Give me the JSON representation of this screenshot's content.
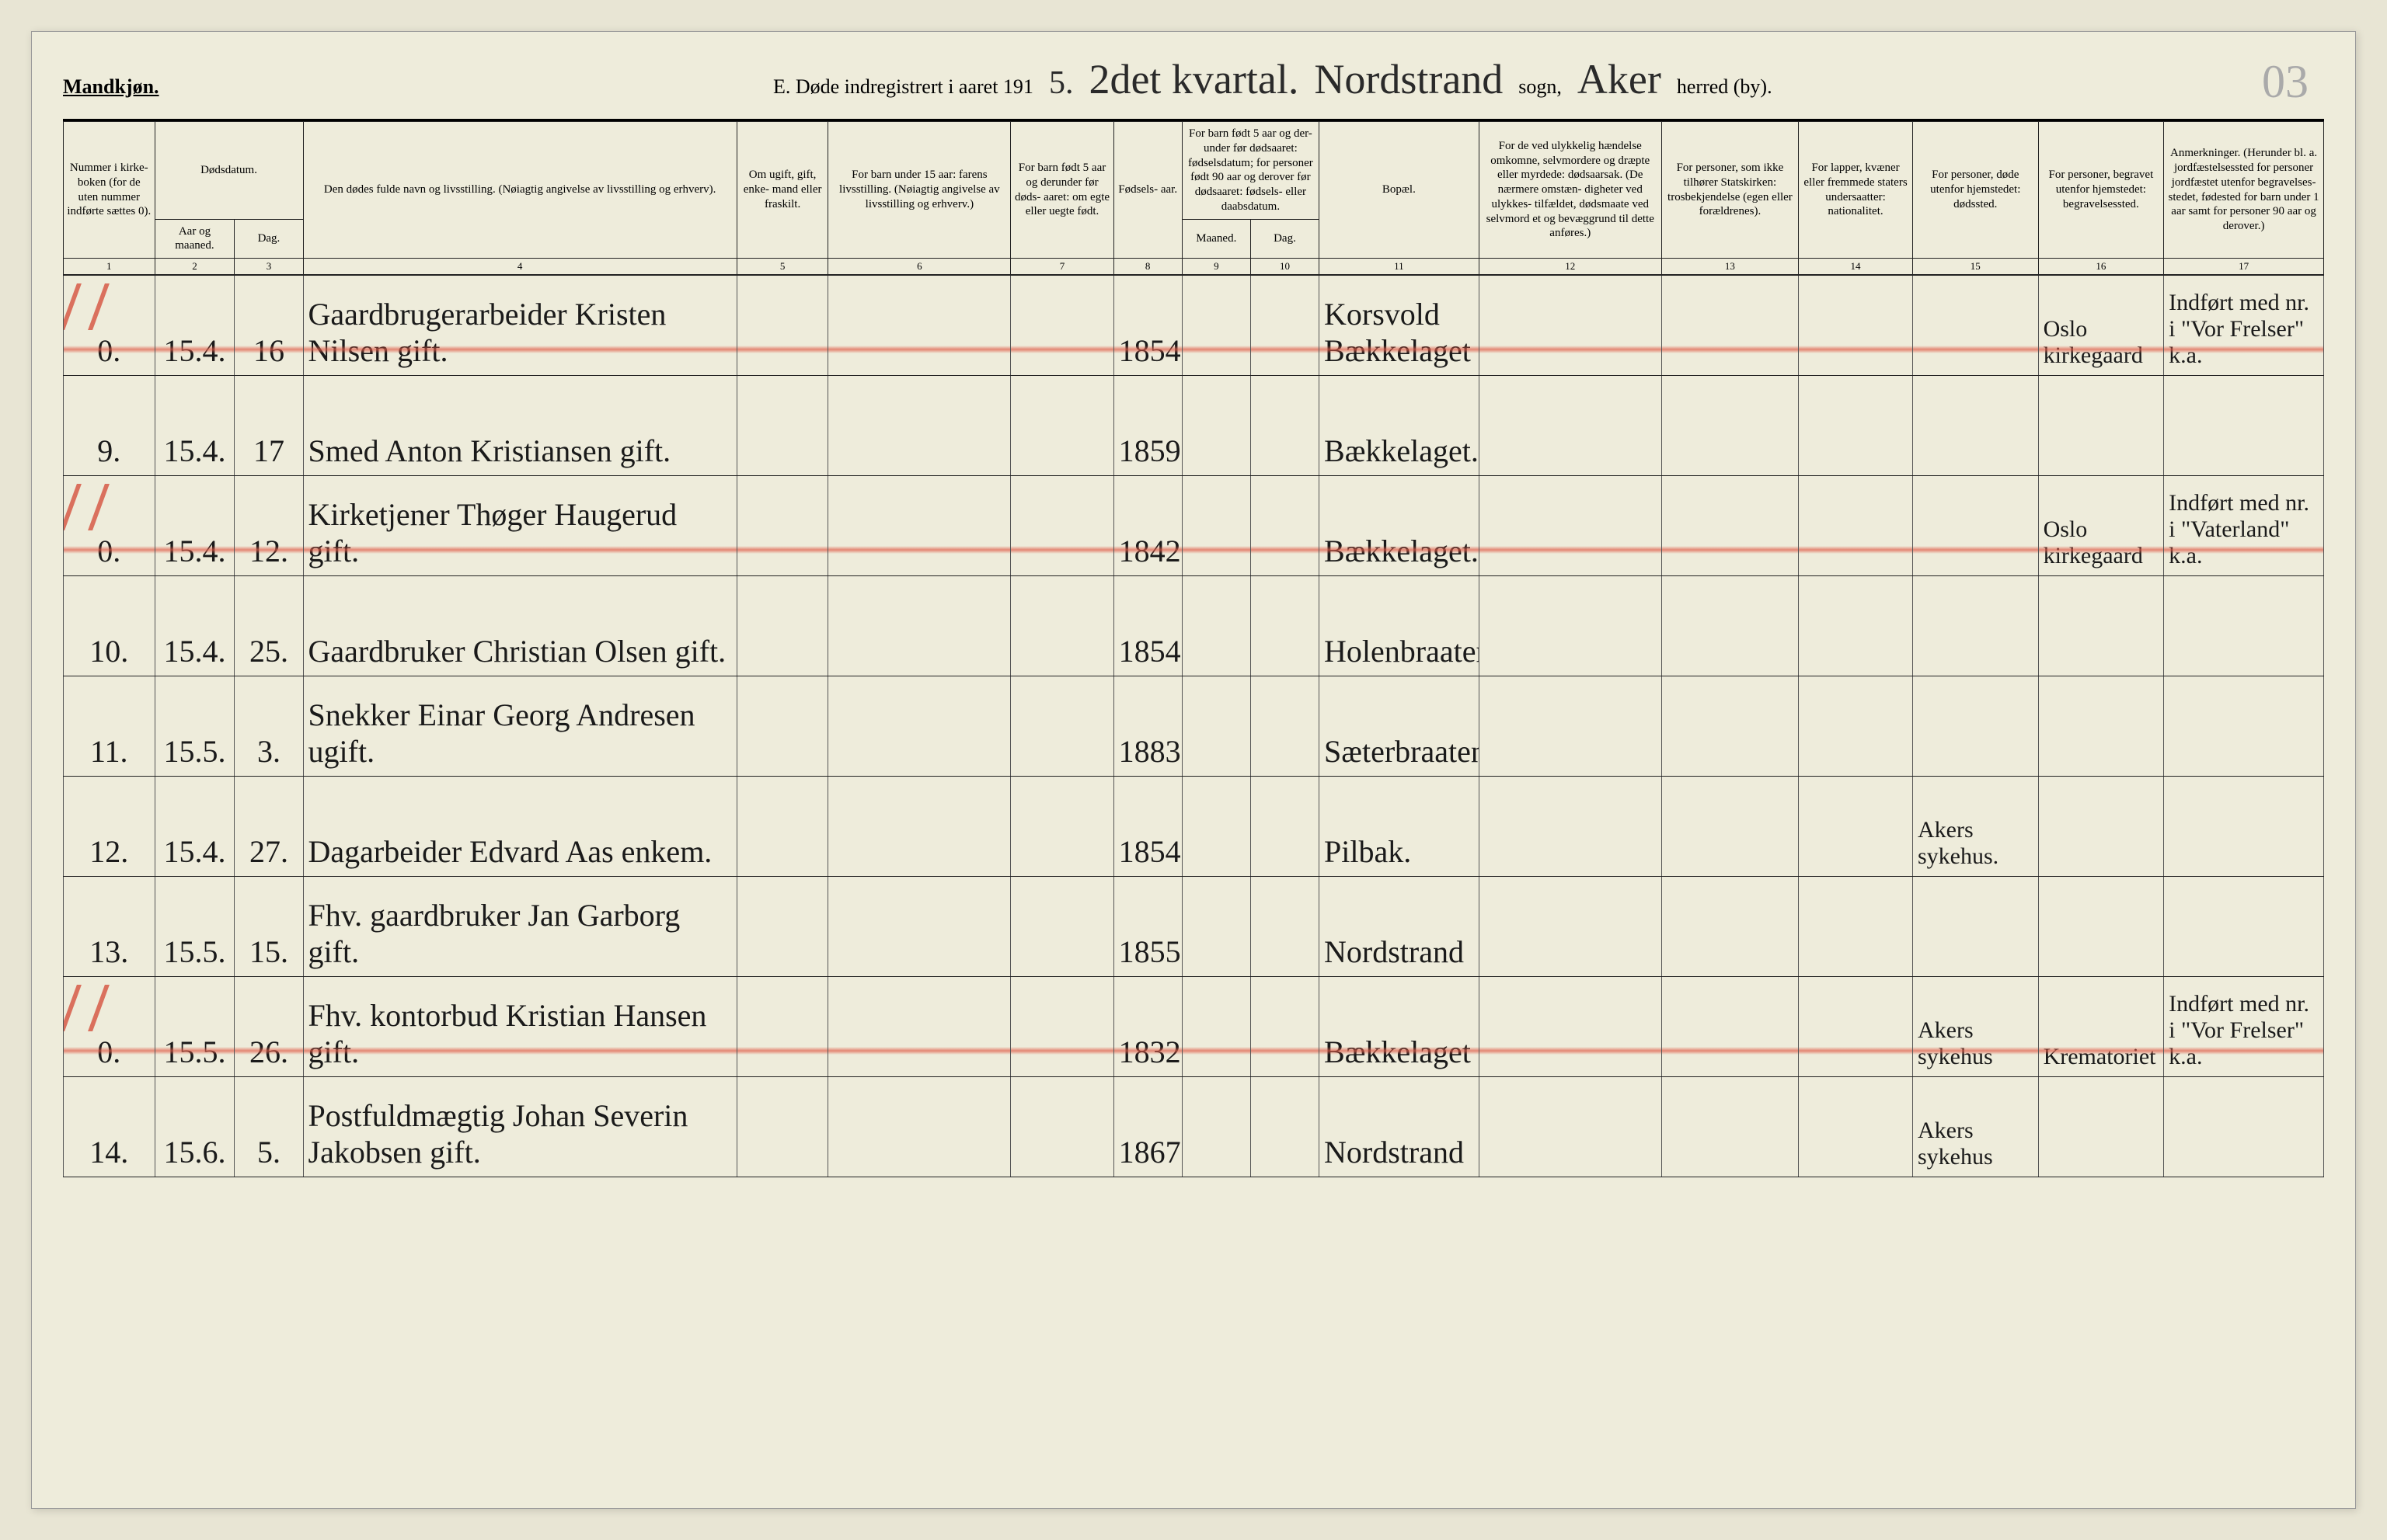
{
  "header": {
    "gender_label": "Mandkjøn.",
    "title_prefix": "E.  Døde indregistrert i aaret 191",
    "year_digit": "5.",
    "quarter_hand": "2det kvartal.",
    "parish_hand": "Nordstrand",
    "sogn_label": "sogn,",
    "district_hand": "Aker",
    "herred_label": "herred (by).",
    "page_marker": "03"
  },
  "columns": {
    "c1": "Nummer i kirke- boken (for de uten nummer indførte sættes 0).",
    "c2_top": "Dødsdatum.",
    "c2": "Aar og maaned.",
    "c3": "Dag.",
    "c4": "Den dødes fulde navn og livsstilling. (Nøiagtig angivelse av livsstilling og erhverv).",
    "c5": "Om ugift, gift, enke- mand eller fraskilt.",
    "c6": "For barn under 15 aar: farens livsstilling. (Nøiagtig angivelse av livsstilling og erhverv.)",
    "c7": "For barn født 5 aar og derunder før døds- aaret: om egte eller uegte født.",
    "c8": "Fødsels- aar.",
    "c9_top": "For barn født 5 aar og der- under før dødsaaret: fødselsdatum; for personer født 90 aar og derover før dødsaaret: fødsels- eller daabsdatum.",
    "c9": "Maaned.",
    "c10": "Dag.",
    "c11": "Bopæl.",
    "c12": "For de ved ulykkelig hændelse omkomne, selvmordere og dræpte eller myrdede: dødsaarsak. (De nærmere omstæn- digheter ved ulykkes- tilfældet, dødsmaate ved selvmord et og bevæggrund til dette anføres.)",
    "c13": "For personer, som ikke tilhører Statskirken: trosbekjendelse (egen eller forældrenes).",
    "c14": "For lapper, kvæner eller fremmede staters undersaatter: nationalitet.",
    "c15": "For personer, døde utenfor hjemstedet: dødssted.",
    "c16": "For personer, begravet utenfor hjemstedet: begravelsessted.",
    "c17": "Anmerkninger. (Herunder bl. a. jordfæstelsessted for personer jordfæstet utenfor begravelses- stedet, fødested for barn under 1 aar samt for personer 90 aar og derover.)"
  },
  "colnums": [
    "1",
    "2",
    "3",
    "4",
    "5",
    "6",
    "7",
    "8",
    "9",
    "10",
    "11",
    "12",
    "13",
    "14",
    "15",
    "16",
    "17"
  ],
  "rows": [
    {
      "redline": true,
      "num": "0.",
      "aar": "15.4.",
      "dag": "16",
      "name": "Gaardbrugerarbeider Kristen Nilsen gift.",
      "birth": "1854",
      "bopal": "Korsvold Bækkelaget",
      "col16": "Oslo kirkegaard",
      "col17": "Indført med nr. i \"Vor Frelser\" k.a."
    },
    {
      "redline": false,
      "num": "9.",
      "aar": "15.4.",
      "dag": "17",
      "name": "Smed Anton Kristiansen gift.",
      "birth": "1859.",
      "bopal": "Bækkelaget.",
      "col16": "",
      "col17": ""
    },
    {
      "redline": true,
      "num": "0.",
      "aar": "15.4.",
      "dag": "12.",
      "name": "Kirketjener Thøger Haugerud gift.",
      "birth": "1842",
      "bopal": "Bækkelaget.",
      "col16": "Oslo kirkegaard",
      "col17": "Indført med nr. i \"Vaterland\" k.a."
    },
    {
      "redline": false,
      "num": "10.",
      "aar": "15.4.",
      "dag": "25.",
      "name": "Gaardbruker Christian Olsen gift.",
      "birth": "1854",
      "bopal": "Holenbraaten",
      "col16": "",
      "col17": ""
    },
    {
      "redline": false,
      "num": "11.",
      "aar": "15.5.",
      "dag": "3.",
      "name": "Snekker Einar Georg Andresen ugift.",
      "birth": "1883",
      "bopal": "Sæterbraaten",
      "col16": "",
      "col17": ""
    },
    {
      "redline": false,
      "num": "12.",
      "aar": "15.4.",
      "dag": "27.",
      "name": "Dagarbeider Edvard Aas enkem.",
      "birth": "1854.",
      "bopal": "Pilbak.",
      "col15": "Akers sykehus.",
      "col16": "",
      "col17": ""
    },
    {
      "redline": false,
      "num": "13.",
      "aar": "15.5.",
      "dag": "15.",
      "name": "Fhv. gaardbruker Jan Garborg gift.",
      "birth": "1855.",
      "bopal": "Nordstrand",
      "col16": "",
      "col17": ""
    },
    {
      "redline": true,
      "num": "0.",
      "aar": "15.5.",
      "dag": "26.",
      "name": "Fhv. kontorbud Kristian Hansen gift.",
      "birth": "1832",
      "bopal": "Bækkelaget",
      "col15": "Akers sykehus",
      "col16": "Krematoriet",
      "col17": "Indført med nr. i \"Vor Frelser\" k.a."
    },
    {
      "redline": false,
      "num": "14.",
      "aar": "15.6.",
      "dag": "5.",
      "name": "Postfuldmægtig Johan Severin Jakobsen gift.",
      "birth": "1867.",
      "bopal": "Nordstrand",
      "col15": "Akers sykehus",
      "col16": "",
      "col17": ""
    }
  ]
}
